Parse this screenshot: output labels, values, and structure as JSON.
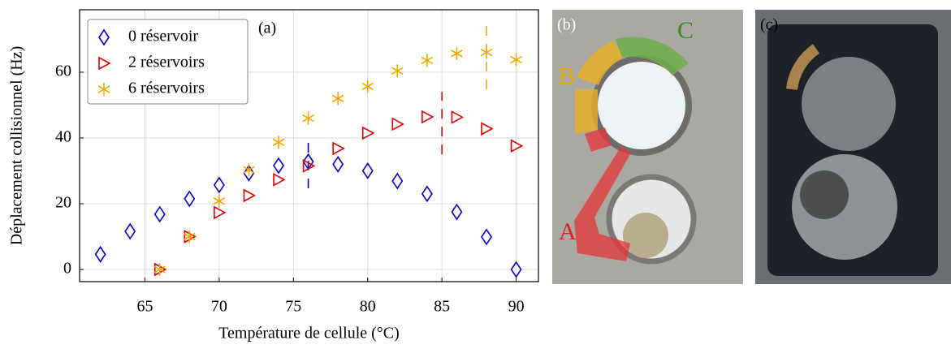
{
  "chart_data": {
    "type": "scatter",
    "panel_label": "(a)",
    "xlabel": "Température de cellule (°C)",
    "ylabel": "Déplacement collisionnel (Hz)",
    "xlim": [
      60.6,
      91.5
    ],
    "ylim": [
      -3.7,
      79
    ],
    "xticks": [
      65,
      70,
      75,
      80,
      85,
      90
    ],
    "yticks": [
      0,
      20,
      40,
      60
    ],
    "grid": true,
    "legend": "upper left",
    "series": [
      {
        "name": "0 réservoir",
        "color": "#0000cc",
        "marker": "diamond",
        "x": [
          62,
          64,
          66,
          68,
          70,
          72,
          74,
          76,
          78,
          80,
          82,
          84,
          86,
          88,
          90
        ],
        "values": [
          4.6,
          11.6,
          16.8,
          21.5,
          25.7,
          29.3,
          31.6,
          32.8,
          32.0,
          30.0,
          26.9,
          23.0,
          17.5,
          9.9,
          0
        ]
      },
      {
        "name": "2 réservoirs",
        "color": "#e00000",
        "marker": "triangle-right",
        "x": [
          66,
          68,
          70,
          72,
          74,
          76,
          78,
          80,
          82,
          84,
          86,
          88,
          90
        ],
        "values": [
          0,
          10,
          17.3,
          22.5,
          27.3,
          31.5,
          36.8,
          41.5,
          44.2,
          46.4,
          46.3,
          42.8,
          37.6
        ]
      },
      {
        "name": "6 réservoirs",
        "color": "#f0a800",
        "marker": "star",
        "x": [
          66,
          68,
          70,
          72,
          74,
          76,
          78,
          80,
          82,
          84,
          86,
          88,
          90
        ],
        "values": [
          0,
          10,
          20.8,
          30.3,
          38.7,
          46.0,
          52.0,
          55.7,
          60.4,
          63.6,
          65.7,
          66.0,
          63.8
        ]
      }
    ],
    "vlines": [
      {
        "x": 76,
        "y0": 24.7,
        "y1": 38.8,
        "color": "#0000cc"
      },
      {
        "x": 85,
        "y0": 35,
        "y1": 54,
        "color": "#e00000"
      },
      {
        "x": 88,
        "y0": 54.8,
        "y1": 74,
        "color": "#f0a800"
      }
    ]
  },
  "photos": [
    {
      "label": "(b)",
      "annotations": [
        "A",
        "B",
        "C"
      ]
    },
    {
      "label": "(c)"
    }
  ]
}
